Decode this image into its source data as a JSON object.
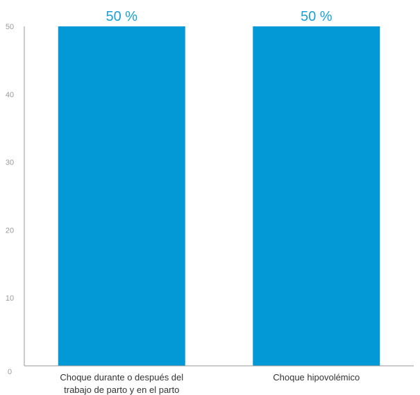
{
  "chart_data": {
    "type": "bar",
    "categories": [
      [
        "Choque durante o después del",
        "trabajo de parto y en el parto"
      ],
      [
        "Choque hipovolémico"
      ]
    ],
    "values": [
      50,
      50
    ],
    "data_labels": [
      "50 %",
      "50 %"
    ],
    "y_ticks": [
      "0",
      "10",
      "20",
      "30",
      "40",
      "50"
    ],
    "ylim": [
      0,
      50
    ],
    "bar_color": "#0399d6",
    "label_color": "#1aa0d8",
    "axis_color": "#999999",
    "grid": false,
    "legend": "none"
  }
}
